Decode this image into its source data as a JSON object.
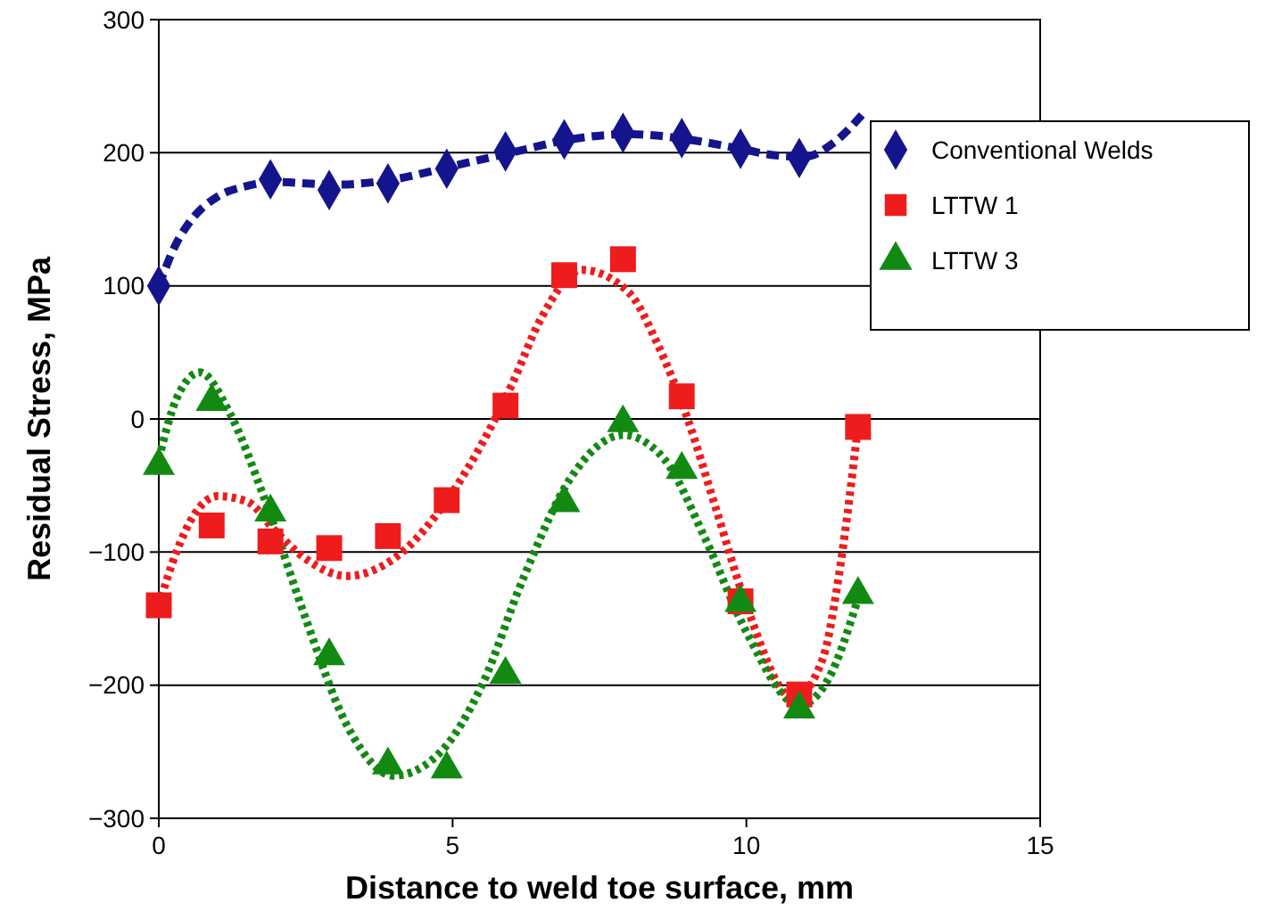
{
  "chart_data": {
    "type": "scatter",
    "xlabel": "Distance to weld toe surface, mm",
    "ylabel": "Residual Stress, MPa",
    "xlim": [
      0,
      15
    ],
    "xticks": [
      0,
      5,
      10,
      15
    ],
    "ylim": [
      -300,
      300
    ],
    "yticks": [
      {
        "value": -300,
        "label": "−300"
      },
      {
        "value": -200,
        "label": "−200"
      },
      {
        "value": -100,
        "label": "−100"
      },
      0,
      100,
      200,
      300
    ],
    "grid": "y",
    "legend": "top right",
    "series": [
      {
        "name": "Conventional Welds",
        "marker": "diamond",
        "color": "#14148c",
        "x": [
          0,
          1.9,
          2.9,
          3.9,
          4.9,
          5.9,
          6.9,
          7.9,
          8.9,
          9.9,
          10.9
        ],
        "values": [
          100,
          180,
          172,
          177,
          188,
          201,
          210,
          215,
          211,
          203,
          196
        ]
      },
      {
        "name": "LTTW 1",
        "marker": "square",
        "color": "#ee1c1c",
        "x": [
          0,
          0.9,
          1.9,
          2.9,
          3.9,
          4.9,
          5.9,
          6.9,
          7.9,
          8.9,
          9.9,
          10.9,
          11.9
        ],
        "values": [
          -140,
          -80,
          -92,
          -97,
          -88,
          -61,
          10,
          108,
          120,
          17,
          -137,
          -207,
          -6
        ]
      },
      {
        "name": "LTTW 3",
        "marker": "triangle",
        "color": "#128a12",
        "x": [
          0,
          0.9,
          1.9,
          2.9,
          3.9,
          4.9,
          5.9,
          6.9,
          7.9,
          8.9,
          9.9,
          10.9,
          11.9
        ],
        "values": [
          -35,
          13,
          -70,
          -178,
          -260,
          -263,
          -192,
          -63,
          -3,
          -38,
          -138,
          -218,
          -132
        ]
      },
      {
        "type": "line",
        "line_style": "dashed",
        "marker": "none",
        "color": "#14148c",
        "x": [
          0,
          0.3,
          0.6,
          1,
          1.5,
          2,
          3,
          4,
          5,
          6,
          7,
          8,
          9,
          10,
          10.5,
          11,
          11.5,
          12
        ],
        "values": [
          100,
          132,
          152,
          167,
          175,
          178,
          176,
          180,
          190,
          200,
          210,
          214,
          210,
          202,
          198,
          197,
          208,
          230
        ]
      },
      {
        "type": "line",
        "line_style": "dotted",
        "marker": "none",
        "color": "#ee1c1c",
        "x": [
          0,
          0.3,
          0.6,
          1,
          1.5,
          2,
          2.5,
          3.2,
          4,
          5,
          6,
          6.5,
          7.2,
          8,
          8.5,
          9,
          9.5,
          10,
          10.8,
          11.3,
          11.6,
          11.9
        ],
        "values": [
          -140,
          -100,
          -72,
          -58,
          -62,
          -85,
          -105,
          -118,
          -105,
          -55,
          25,
          75,
          112,
          95,
          55,
          0,
          -70,
          -140,
          -210,
          -180,
          -110,
          -5
        ]
      },
      {
        "type": "line",
        "line_style": "dotted",
        "marker": "none",
        "color": "#128a12",
        "x": [
          0,
          0.3,
          0.7,
          1.2,
          1.8,
          2.5,
          3.2,
          4,
          4.8,
          5.5,
          6.2,
          7,
          7.9,
          8.6,
          9.3,
          10,
          10.9,
          11.4,
          11.9
        ],
        "values": [
          -30,
          15,
          35,
          5,
          -60,
          -150,
          -230,
          -268,
          -250,
          -200,
          -120,
          -45,
          -12,
          -30,
          -90,
          -160,
          -215,
          -195,
          -135
        ]
      }
    ]
  }
}
